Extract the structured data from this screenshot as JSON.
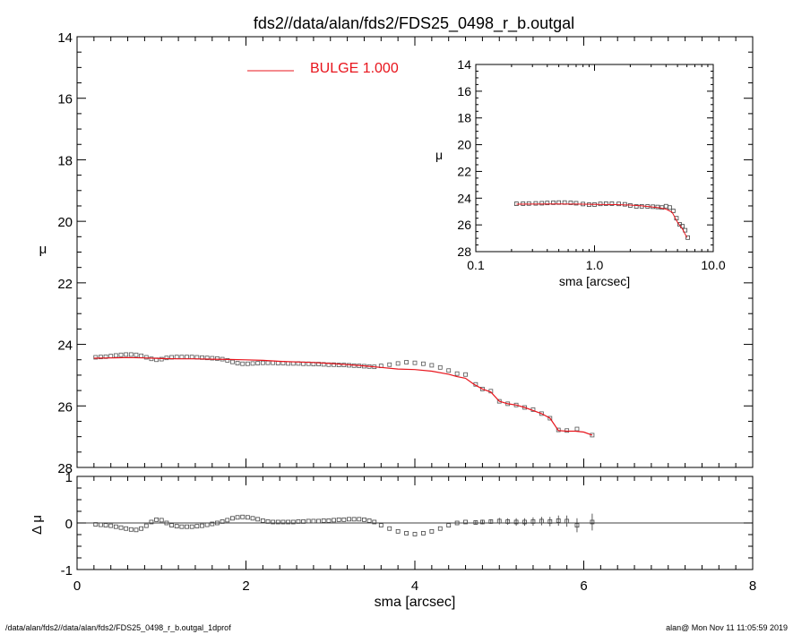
{
  "title": "fds2//data/alan/fds2/FDS25_0498_r_b.outgal",
  "footer": {
    "left": "/data/alan/fds2//data/alan/fds2/FDS25_0498_r_b.outgal_1dprof",
    "right": "alan@  Mon Nov 11 11:05:59 2019"
  },
  "colors": {
    "model": "#e8141c",
    "data": "#000000",
    "frame": "#000000"
  },
  "chart_data": [
    {
      "panel": "main",
      "type": "scatter",
      "xlabel": "sma [arcsec]",
      "ylabel": "μ",
      "xlim": [
        0,
        8
      ],
      "ylim": [
        28,
        14
      ],
      "yticks": [
        14,
        16,
        18,
        20,
        22,
        24,
        26,
        28
      ],
      "xticks": [
        0,
        2,
        4,
        6,
        8
      ],
      "legend": {
        "label": "BULGE  1.000",
        "placement": "top-center"
      },
      "series": [
        {
          "name": "BULGE  1.000",
          "style": "line",
          "x": [
            0.2,
            0.4,
            0.6,
            0.8,
            1.0,
            1.2,
            1.4,
            1.6,
            1.8,
            2.0,
            2.2,
            2.4,
            2.6,
            2.8,
            3.0,
            3.2,
            3.4,
            3.6,
            3.8,
            4.0,
            4.2,
            4.4,
            4.5,
            4.6,
            4.7,
            4.8,
            4.9,
            5.0,
            5.1,
            5.2,
            5.3,
            5.4,
            5.5,
            5.6,
            5.7,
            5.8,
            5.9,
            6.0,
            6.1
          ],
          "y": [
            24.45,
            24.44,
            24.43,
            24.44,
            24.46,
            24.47,
            24.47,
            24.48,
            24.49,
            24.5,
            24.52,
            24.55,
            24.57,
            24.59,
            24.62,
            24.66,
            24.7,
            24.75,
            24.8,
            24.82,
            24.87,
            24.97,
            25.05,
            25.1,
            25.3,
            25.45,
            25.55,
            25.85,
            25.93,
            25.97,
            26.05,
            26.15,
            26.25,
            26.4,
            26.8,
            26.82,
            26.82,
            26.85,
            26.95
          ]
        },
        {
          "style": "markers",
          "x": [
            0.22,
            0.28,
            0.34,
            0.4,
            0.46,
            0.52,
            0.58,
            0.64,
            0.7,
            0.76,
            0.82,
            0.88,
            0.94,
            1.0,
            1.06,
            1.12,
            1.18,
            1.24,
            1.3,
            1.36,
            1.42,
            1.48,
            1.54,
            1.6,
            1.66,
            1.72,
            1.78,
            1.84,
            1.9,
            1.96,
            2.02,
            2.08,
            2.14,
            2.2,
            2.26,
            2.32,
            2.38,
            2.44,
            2.5,
            2.56,
            2.62,
            2.68,
            2.74,
            2.8,
            2.86,
            2.92,
            2.98,
            3.04,
            3.1,
            3.16,
            3.22,
            3.28,
            3.34,
            3.4,
            3.46,
            3.52,
            3.6,
            3.7,
            3.8,
            3.9,
            4.0,
            4.1,
            4.2,
            4.3,
            4.4,
            4.5,
            4.6,
            4.72,
            4.8,
            4.9,
            5.0,
            5.1,
            5.2,
            5.3,
            5.4,
            5.5,
            5.6,
            5.7,
            5.8,
            5.92,
            6.1
          ],
          "y": [
            24.42,
            24.41,
            24.4,
            24.38,
            24.36,
            24.34,
            24.33,
            24.33,
            24.34,
            24.37,
            24.42,
            24.47,
            24.5,
            24.48,
            24.44,
            24.42,
            24.41,
            24.41,
            24.41,
            24.41,
            24.42,
            24.43,
            24.44,
            24.45,
            24.46,
            24.48,
            24.52,
            24.57,
            24.61,
            24.63,
            24.63,
            24.62,
            24.61,
            24.6,
            24.6,
            24.6,
            24.61,
            24.61,
            24.62,
            24.62,
            24.62,
            24.63,
            24.63,
            24.64,
            24.64,
            24.65,
            24.66,
            24.66,
            24.67,
            24.67,
            24.68,
            24.69,
            24.7,
            24.71,
            24.72,
            24.73,
            24.7,
            24.66,
            24.62,
            24.58,
            24.6,
            24.63,
            24.68,
            24.75,
            24.85,
            24.95,
            24.98,
            25.3,
            25.45,
            25.52,
            25.85,
            25.93,
            25.97,
            26.05,
            26.12,
            26.25,
            26.4,
            26.78,
            26.8,
            26.75,
            26.95
          ]
        }
      ]
    },
    {
      "panel": "inset",
      "type": "scatter",
      "xlabel": "sma [arcsec]",
      "ylabel": "μ",
      "xscale": "log",
      "xlim": [
        0.1,
        10
      ],
      "ylim": [
        28,
        14
      ],
      "xtick_labels": [
        "0.1",
        "1.0",
        "10.0"
      ],
      "yticks": [
        14,
        16,
        18,
        20,
        22,
        24,
        26,
        28
      ],
      "series": [
        {
          "style": "line",
          "x": [
            0.22,
            0.3,
            0.5,
            0.7,
            1.0,
            1.5,
            2.0,
            2.5,
            3.0,
            3.5,
            4.0,
            4.5,
            5.0,
            5.5,
            6.0
          ],
          "y": [
            24.45,
            24.44,
            24.43,
            24.44,
            24.46,
            24.48,
            24.52,
            24.58,
            24.65,
            24.72,
            24.82,
            25.05,
            25.8,
            26.3,
            26.95
          ]
        },
        {
          "style": "markers",
          "x": [
            0.22,
            0.25,
            0.28,
            0.32,
            0.36,
            0.4,
            0.45,
            0.5,
            0.56,
            0.63,
            0.7,
            0.8,
            0.9,
            1.0,
            1.12,
            1.25,
            1.4,
            1.6,
            1.8,
            2.0,
            2.25,
            2.5,
            2.8,
            3.1,
            3.4,
            3.7,
            4.0,
            4.3,
            4.6,
            4.9,
            5.2,
            5.5,
            5.8,
            6.1
          ],
          "y": [
            24.42,
            24.41,
            24.4,
            24.39,
            24.38,
            24.36,
            24.34,
            24.33,
            24.33,
            24.35,
            24.38,
            24.44,
            24.49,
            24.48,
            24.43,
            24.41,
            24.41,
            24.43,
            24.46,
            24.55,
            24.62,
            24.61,
            24.62,
            24.64,
            24.66,
            24.7,
            24.6,
            24.7,
            24.95,
            25.5,
            25.95,
            26.1,
            26.4,
            26.95
          ]
        }
      ]
    },
    {
      "panel": "residual",
      "type": "scatter",
      "xlabel": "sma [arcsec]",
      "ylabel": "Δ μ",
      "xlim": [
        0,
        8
      ],
      "ylim": [
        -1,
        1
      ],
      "yticks": [
        -1,
        0,
        1
      ],
      "xticks": [
        0,
        2,
        4,
        6,
        8
      ],
      "series": [
        {
          "style": "markers_with_errorbars",
          "x": [
            0.22,
            0.28,
            0.34,
            0.4,
            0.46,
            0.52,
            0.58,
            0.64,
            0.7,
            0.76,
            0.82,
            0.88,
            0.94,
            1.0,
            1.06,
            1.12,
            1.18,
            1.24,
            1.3,
            1.36,
            1.42,
            1.48,
            1.54,
            1.6,
            1.66,
            1.72,
            1.78,
            1.84,
            1.9,
            1.96,
            2.02,
            2.08,
            2.14,
            2.2,
            2.26,
            2.32,
            2.38,
            2.44,
            2.5,
            2.56,
            2.62,
            2.68,
            2.74,
            2.8,
            2.86,
            2.92,
            2.98,
            3.04,
            3.1,
            3.16,
            3.22,
            3.28,
            3.34,
            3.4,
            3.46,
            3.52,
            3.6,
            3.7,
            3.8,
            3.9,
            4.0,
            4.1,
            4.2,
            4.3,
            4.4,
            4.5,
            4.6,
            4.72,
            4.8,
            4.9,
            5.0,
            5.1,
            5.2,
            5.3,
            5.4,
            5.5,
            5.6,
            5.7,
            5.8,
            5.92,
            6.1
          ],
          "y": [
            -0.03,
            -0.04,
            -0.05,
            -0.06,
            -0.08,
            -0.1,
            -0.12,
            -0.14,
            -0.15,
            -0.12,
            -0.06,
            0.02,
            0.07,
            0.06,
            0.0,
            -0.05,
            -0.07,
            -0.08,
            -0.08,
            -0.08,
            -0.07,
            -0.06,
            -0.04,
            -0.02,
            0.0,
            0.03,
            0.06,
            0.1,
            0.12,
            0.13,
            0.12,
            0.1,
            0.08,
            0.05,
            0.03,
            0.02,
            0.02,
            0.02,
            0.02,
            0.02,
            0.03,
            0.03,
            0.04,
            0.04,
            0.04,
            0.05,
            0.05,
            0.06,
            0.07,
            0.07,
            0.08,
            0.08,
            0.08,
            0.07,
            0.05,
            0.02,
            -0.05,
            -0.12,
            -0.18,
            -0.22,
            -0.24,
            -0.22,
            -0.18,
            -0.12,
            -0.05,
            0.0,
            0.02,
            0.01,
            0.02,
            0.03,
            0.04,
            0.03,
            0.02,
            0.02,
            0.03,
            0.04,
            0.03,
            0.05,
            0.04,
            -0.05,
            0.02
          ],
          "err": [
            0,
            0,
            0,
            0,
            0,
            0,
            0,
            0,
            0,
            0,
            0,
            0,
            0,
            0,
            0,
            0,
            0,
            0,
            0,
            0,
            0,
            0,
            0,
            0,
            0,
            0,
            0,
            0,
            0,
            0,
            0,
            0,
            0,
            0,
            0,
            0,
            0,
            0,
            0,
            0,
            0,
            0,
            0,
            0,
            0,
            0,
            0,
            0,
            0,
            0,
            0,
            0,
            0,
            0,
            0,
            0,
            0,
            0,
            0,
            0,
            0,
            0,
            0,
            0,
            0,
            0,
            0,
            0.04,
            0.05,
            0.05,
            0.07,
            0.07,
            0.08,
            0.08,
            0.09,
            0.09,
            0.1,
            0.11,
            0.12,
            0.15,
            0.18
          ]
        }
      ]
    }
  ]
}
